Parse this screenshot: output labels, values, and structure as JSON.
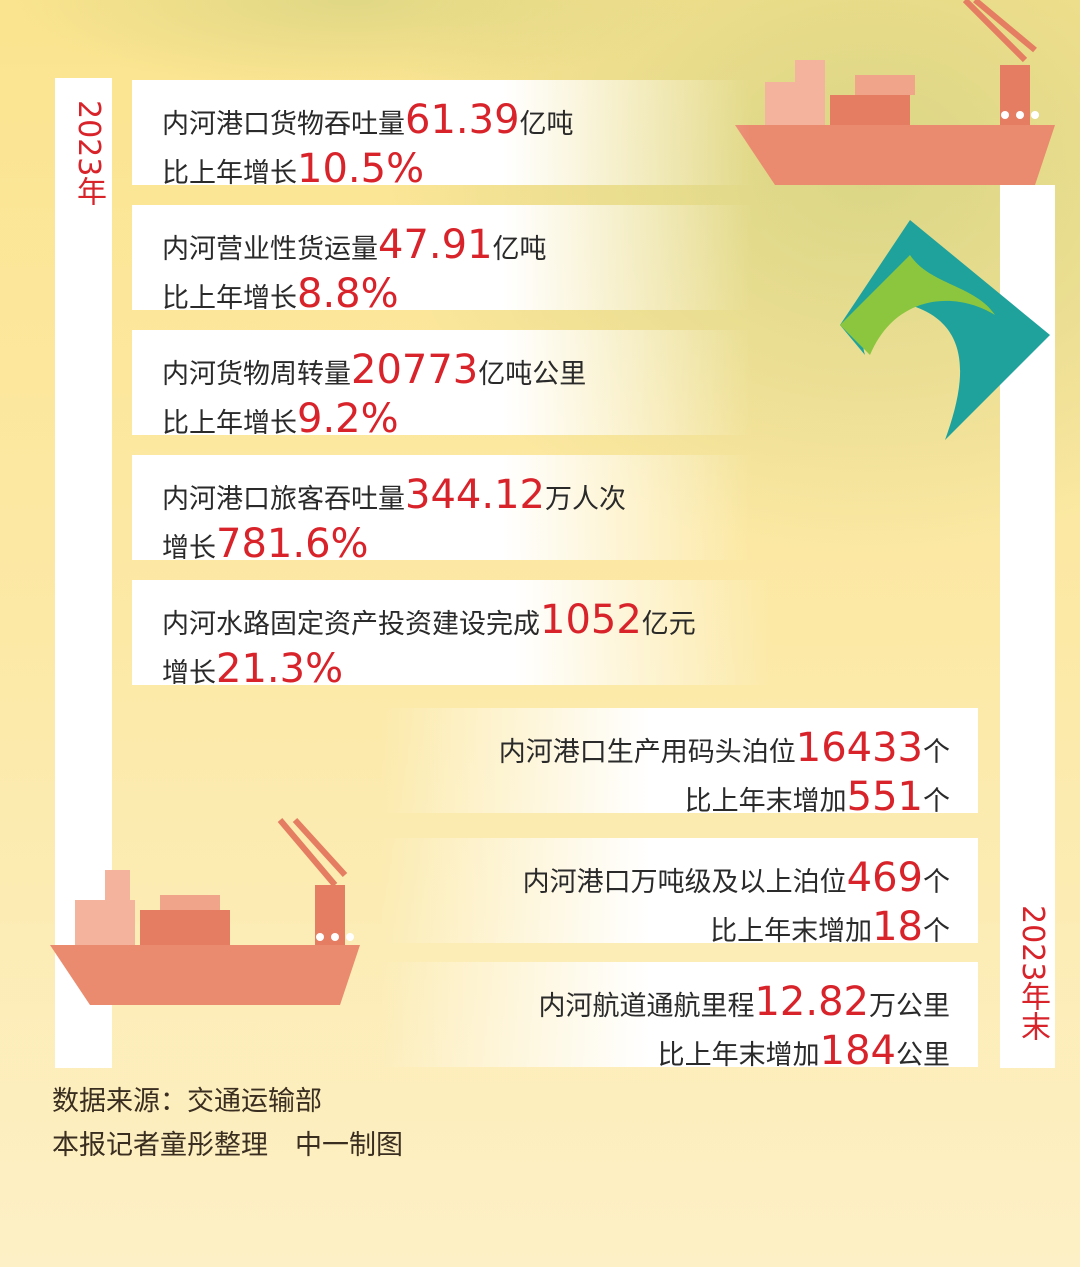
{
  "labels": {
    "left": "2023年",
    "right": "2023年末"
  },
  "annual": [
    {
      "pre": "内河港口货物吞吐量",
      "value": "61.39",
      "unit": "亿吨",
      "growth_pre": "比上年增长",
      "growth": "10.5%"
    },
    {
      "pre": "内河营业性货运量",
      "value": "47.91",
      "unit": "亿吨",
      "growth_pre": "比上年增长",
      "growth": "8.8%"
    },
    {
      "pre": "内河货物周转量",
      "value": "20773",
      "unit": "亿吨公里",
      "growth_pre": "比上年增长",
      "growth": "9.2%"
    },
    {
      "pre": "内河港口旅客吞吐量",
      "value": "344.12",
      "unit": "万人次",
      "growth_pre": "增长",
      "growth": "781.6%"
    },
    {
      "pre": "内河水路固定资产投资建设完成",
      "value": "1052",
      "unit": "亿元",
      "growth_pre": "增长",
      "growth": "21.3%"
    }
  ],
  "yearend": [
    {
      "pre": "内河港口生产用码头泊位",
      "value": "16433",
      "unit": "个",
      "growth_pre": "比上年末增加",
      "growth": "551",
      "growth_unit": "个"
    },
    {
      "pre": "内河港口万吨级及以上泊位",
      "value": "469",
      "unit": "个",
      "growth_pre": "比上年末增加",
      "growth": "18",
      "growth_unit": "个"
    },
    {
      "pre": "内河航道通航里程",
      "value": "12.82",
      "unit": "万公里",
      "growth_pre": "比上年末增加",
      "growth": "184",
      "growth_unit": "公里"
    }
  ],
  "footer": {
    "source": "数据来源：交通运输部",
    "credit": "本报记者童彤整理　中一制图"
  },
  "colors": {
    "accent": "#d9232b",
    "ship": "#ea8a6e",
    "background": "#fce9a6"
  }
}
